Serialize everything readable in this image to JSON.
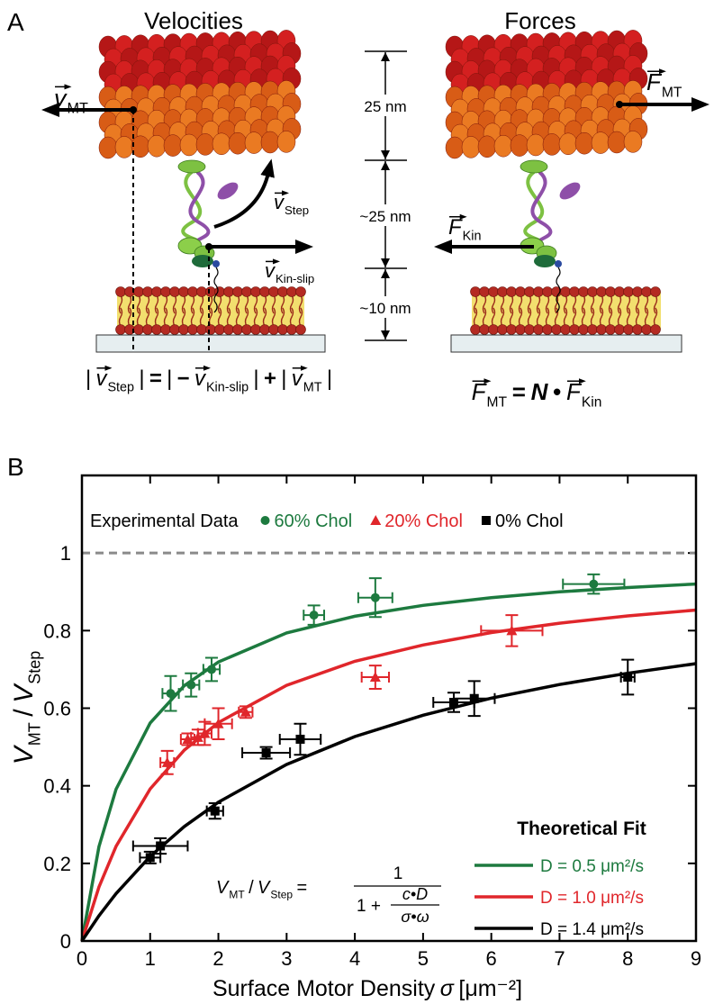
{
  "panel_a": {
    "label": "A",
    "titles": [
      "Velocities",
      "Forces"
    ],
    "scale": [
      "25 nm",
      "~25 nm",
      "~10 nm"
    ],
    "v_mt": [
      {
        "text": "v",
        "sub": "MT",
        "style": "italic",
        "vec": true
      }
    ],
    "v_step": [
      {
        "text": "v",
        "sub": "Step",
        "style": "italic",
        "vec": true
      }
    ],
    "v_kin_slip": [
      {
        "text": "v",
        "sub": "Kin-slip",
        "style": "italic",
        "vec": true
      }
    ],
    "f_mt": [
      {
        "text": "F",
        "sub": "MT",
        "style": "italic",
        "vec": true
      }
    ],
    "f_kin": [
      {
        "text": "F",
        "sub": "Kin",
        "style": "italic",
        "vec": true
      }
    ],
    "velocity_equation": [
      {
        "text": "|"
      },
      {
        "text": "v",
        "sub": "Step",
        "style": "italic",
        "vec": true
      },
      {
        "text": "|"
      },
      {
        "text": "=",
        "style": "bold"
      },
      {
        "text": "|"
      },
      {
        "text": "−",
        "style": "bold"
      },
      {
        "text": "v",
        "sub": "Kin-slip",
        "style": "italic",
        "vec": true
      },
      {
        "text": "|"
      },
      {
        "text": "+",
        "style": "bold"
      },
      {
        "text": "|"
      },
      {
        "text": "v",
        "sub": "MT",
        "style": "italic",
        "vec": true
      },
      {
        "text": "|"
      }
    ],
    "force_equation": [
      {
        "text": "F",
        "sub": "MT",
        "style": "italic",
        "vec": true
      },
      {
        "text": "=",
        "style": "bold"
      },
      {
        "text": "N",
        "style": "bold-italic"
      },
      {
        "text": "•",
        "style": "bold"
      },
      {
        "text": "F",
        "sub": "Kin",
        "style": "italic",
        "vec": true
      }
    ]
  },
  "panel_b": {
    "label": "B"
  },
  "chart_data": {
    "type": "scatter",
    "x_label": [
      {
        "text": "Surface Motor Density"
      },
      {
        "text": "σ",
        "style": "italic"
      },
      {
        "text": "[μm⁻²]"
      }
    ],
    "y_label": [
      {
        "text": "V",
        "sub": "MT",
        "style": "italic"
      },
      {
        "text": "/"
      },
      {
        "text": "V",
        "sub": "Step",
        "style": "italic"
      }
    ],
    "xlim": [
      0,
      9
    ],
    "ylim": [
      0,
      1.2
    ],
    "xticks": [
      0,
      1,
      2,
      3,
      4,
      5,
      6,
      7,
      8,
      9
    ],
    "yticks": [
      0,
      0.2,
      0.4,
      0.6,
      0.8,
      1
    ],
    "reference_line": 1,
    "legend_title": "Experimental Data",
    "series": [
      {
        "name": "60% Chol",
        "color": "#1d7a3f",
        "marker": "circle",
        "x": [
          1.3,
          1.6,
          1.9,
          3.4,
          4.3,
          7.5
        ],
        "values": [
          0.638,
          0.66,
          0.7,
          0.84,
          0.885,
          0.92
        ],
        "errors": [
          0.045,
          0.03,
          0.03,
          0.025,
          0.05,
          0.025
        ],
        "xerr": [
          0.12,
          0.12,
          0.12,
          0.15,
          0.25,
          0.45
        ]
      },
      {
        "name": "20% Chol",
        "color": "#e0262b",
        "marker": "triangle",
        "x": [
          1.25,
          1.55,
          1.7,
          1.8,
          2.0,
          2.4,
          4.3,
          6.3
        ],
        "values": [
          0.46,
          0.52,
          0.525,
          0.535,
          0.56,
          0.59,
          0.68,
          0.8
        ],
        "errors": [
          0.03,
          0.015,
          0.02,
          0.03,
          0.04,
          0.015,
          0.03,
          0.04
        ],
        "xerr": [
          0.1,
          0.1,
          0.1,
          0.1,
          0.2,
          0.1,
          0.2,
          0.45
        ]
      },
      {
        "name": "0% Chol",
        "color": "#000000",
        "marker": "square",
        "x": [
          1.0,
          1.15,
          1.95,
          2.7,
          3.2,
          5.45,
          5.75,
          8.0
        ],
        "values": [
          0.215,
          0.245,
          0.335,
          0.485,
          0.52,
          0.615,
          0.625,
          0.68
        ],
        "errors": [
          0.015,
          0.02,
          0.02,
          0.015,
          0.04,
          0.025,
          0.045,
          0.045
        ],
        "xerr": [
          0.15,
          0.4,
          0.12,
          0.35,
          0.3,
          0.3,
          0.3,
          0.1
        ]
      }
    ],
    "fit_title": "Theoretical Fit",
    "fits": [
      {
        "name": "D = 0.5 μm²/s",
        "color": "#1d7a3f",
        "x": [
          0,
          0.25,
          0.5,
          1,
          1.5,
          2,
          3,
          4,
          5,
          6,
          7,
          8,
          9
        ],
        "values": [
          0,
          0.243,
          0.391,
          0.562,
          0.658,
          0.719,
          0.794,
          0.837,
          0.865,
          0.885,
          0.9,
          0.911,
          0.92
        ]
      },
      {
        "name": "D = 1.0 μm²/s",
        "color": "#e0262b",
        "x": [
          0,
          0.25,
          0.5,
          1,
          1.5,
          2,
          3,
          4,
          5,
          6,
          7,
          8,
          9
        ],
        "values": [
          0,
          0.139,
          0.244,
          0.392,
          0.492,
          0.563,
          0.659,
          0.721,
          0.763,
          0.795,
          0.819,
          0.838,
          0.853
        ]
      },
      {
        "name": "D = 1.4 μm²/s",
        "color": "#000000",
        "x": [
          0,
          0.25,
          0.5,
          1,
          1.5,
          2,
          3,
          4,
          5,
          6,
          7,
          8,
          9
        ],
        "values": [
          0,
          0.065,
          0.122,
          0.218,
          0.295,
          0.358,
          0.455,
          0.527,
          0.582,
          0.626,
          0.661,
          0.69,
          0.715
        ]
      }
    ],
    "formula": {
      "lhs": [
        {
          "text": "V",
          "sub": "MT",
          "style": "italic"
        },
        {
          "text": "/"
        },
        {
          "text": "V",
          "sub": "Step",
          "style": "italic"
        },
        {
          "text": "="
        }
      ],
      "numerator": "1",
      "denominator": "1 +",
      "inner_numerator": "c•D",
      "inner_denominator": "σ•ω"
    }
  }
}
